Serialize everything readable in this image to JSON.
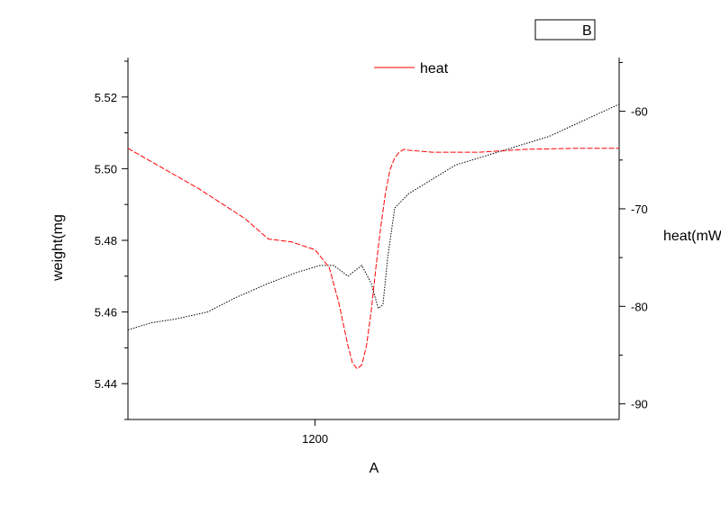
{
  "chart_data": {
    "type": "line",
    "x_axis": {
      "label": "A",
      "ticks": [
        {
          "value": 1200,
          "label": "1200"
        }
      ],
      "range": [
        1160,
        1265
      ]
    },
    "y_left": {
      "label": "weight(mg",
      "ticks": [
        {
          "value": 5.44,
          "label": "5.44"
        },
        {
          "value": 5.46,
          "label": "5.46"
        },
        {
          "value": 5.48,
          "label": "5.48"
        },
        {
          "value": 5.5,
          "label": "5.50"
        },
        {
          "value": 5.52,
          "label": "5.52"
        }
      ],
      "range": [
        5.43,
        5.531
      ]
    },
    "y_right": {
      "label": "heat(mW",
      "ticks": [
        {
          "value": -90,
          "label": "-90"
        },
        {
          "value": -80,
          "label": "-80"
        },
        {
          "value": -70,
          "label": "-70"
        },
        {
          "value": -60,
          "label": "-60"
        }
      ],
      "range": [
        -91.6,
        -54.5
      ]
    },
    "legend": {
      "entries": [
        {
          "text": "B",
          "color": "#000000"
        },
        {
          "text": "heat",
          "color": "#ff0000"
        }
      ]
    },
    "series": [
      {
        "name": "B",
        "axis": "left",
        "color": "#000000",
        "style": "dotted",
        "x": [
          1160,
          1165,
          1170,
          1177,
          1183,
          1190,
          1196,
          1201,
          1204,
          1207,
          1208,
          1210,
          1212,
          1213.5,
          1214.5,
          1215.5,
          1217,
          1220,
          1225,
          1230,
          1240,
          1250,
          1260,
          1265
        ],
        "y": [
          5.455,
          5.457,
          5.458,
          5.46,
          5.464,
          5.468,
          5.471,
          5.473,
          5.473,
          5.47,
          5.471,
          5.473,
          5.468,
          5.461,
          5.462,
          5.475,
          5.489,
          5.493,
          5.497,
          5.501,
          5.505,
          5.509,
          5.515,
          5.518
        ]
      },
      {
        "name": "heat",
        "axis": "right",
        "color": "#ff0000",
        "style": "dashed",
        "x": [
          1160,
          1175,
          1185,
          1190,
          1195,
          1200,
          1203,
          1205,
          1207,
          1208,
          1209,
          1210,
          1211,
          1212,
          1213,
          1214,
          1215,
          1216,
          1217,
          1218,
          1219,
          1220,
          1225,
          1235,
          1245,
          1255,
          1265
        ],
        "y": [
          -63.8,
          -67.9,
          -71.0,
          -73.1,
          -73.4,
          -74.2,
          -76.0,
          -79.5,
          -84.0,
          -85.8,
          -86.4,
          -86.0,
          -84.0,
          -80.5,
          -76.0,
          -72.0,
          -68.5,
          -66.0,
          -64.8,
          -64.2,
          -63.9,
          -64.0,
          -64.2,
          -64.2,
          -63.9,
          -63.8,
          -63.8
        ]
      }
    ]
  }
}
